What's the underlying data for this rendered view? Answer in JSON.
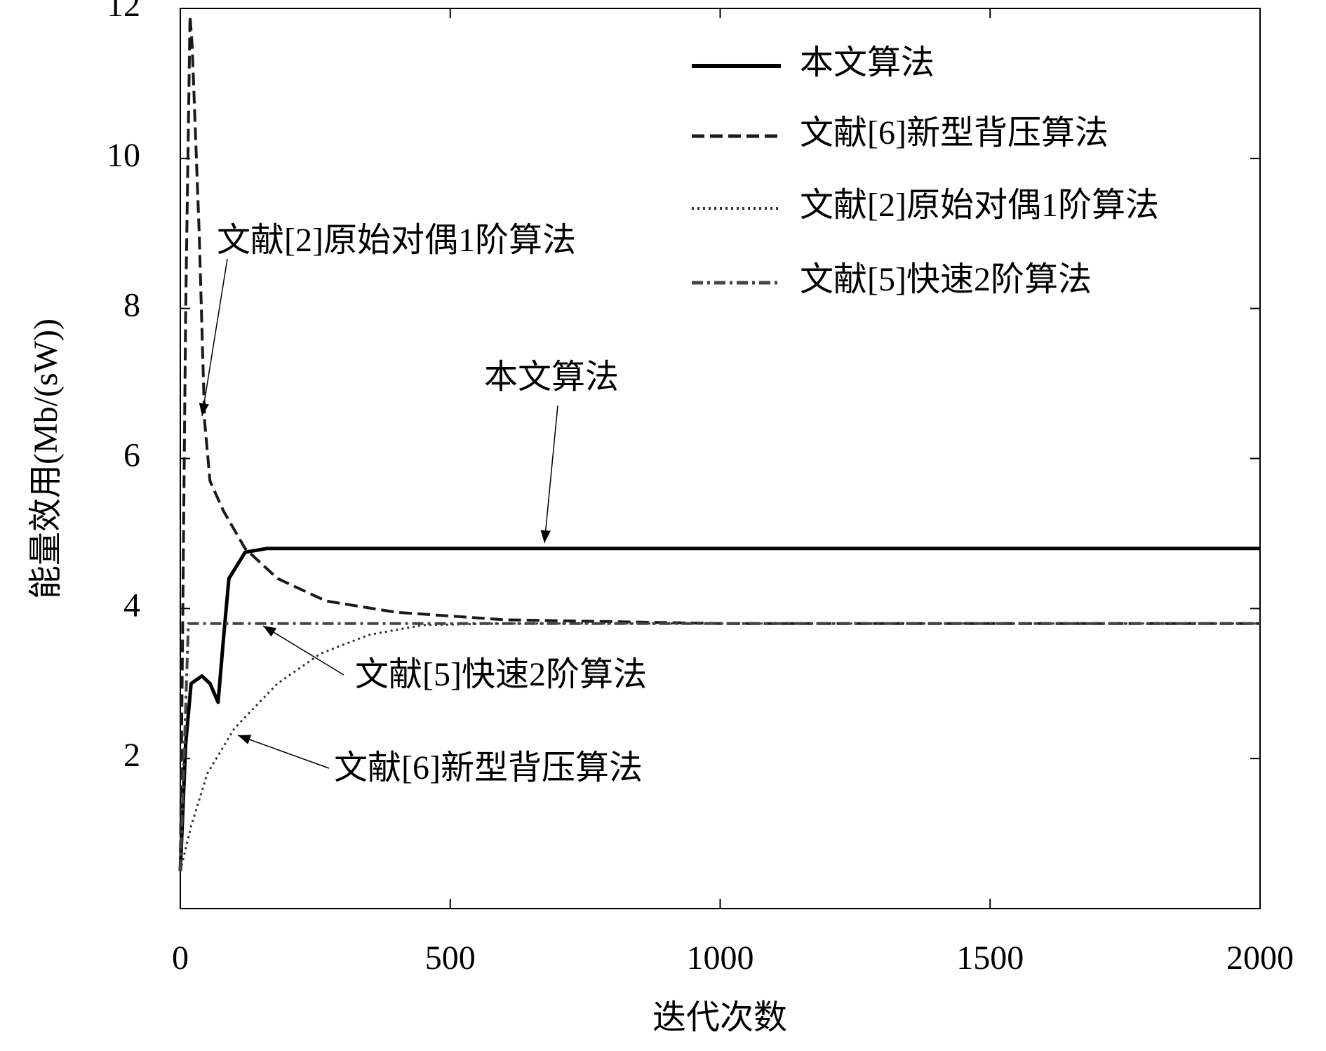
{
  "chart_data": {
    "type": "line",
    "xlabel": "迭代次数",
    "ylabel": "能量效用(Mb/(sW))",
    "xlim": [
      0,
      2000
    ],
    "xticks": [
      0,
      500,
      1000,
      1500,
      2000
    ],
    "ylim": [
      0,
      12
    ],
    "yticks": [
      2,
      4,
      6,
      8,
      10,
      12
    ],
    "legend": "upper right",
    "series": [
      {
        "name": "本文算法",
        "color": "#000000",
        "dash": "solid",
        "x": [
          0,
          10,
          20,
          40,
          55,
          70,
          80,
          90,
          120,
          160,
          300,
          1000,
          2000
        ],
        "values": [
          0.5,
          2.2,
          3.0,
          3.1,
          3.0,
          2.75,
          3.6,
          4.4,
          4.75,
          4.8,
          4.8,
          4.8,
          4.8
        ]
      },
      {
        "name": "文献[6]新型背压算法",
        "color": "#1a1a1a",
        "dash": "dashed",
        "x": [
          0,
          10,
          18,
          22,
          35,
          45,
          55,
          80,
          120,
          180,
          270,
          400,
          600,
          1000,
          2000
        ],
        "values": [
          0.5,
          8.0,
          11.9,
          11.5,
          9.0,
          6.5,
          5.7,
          5.3,
          4.8,
          4.4,
          4.1,
          3.95,
          3.85,
          3.8,
          3.8
        ]
      },
      {
        "name": "文献[2]原始对偶1阶算法",
        "color": "#333333",
        "dash": "dotted",
        "x": [
          0,
          20,
          50,
          100,
          180,
          260,
          350,
          450,
          600,
          1000,
          2000
        ],
        "values": [
          0.5,
          1.1,
          1.8,
          2.4,
          3.0,
          3.4,
          3.65,
          3.78,
          3.8,
          3.8,
          3.8
        ]
      },
      {
        "name": "文献[5]快速2阶算法",
        "color": "#444444",
        "dash": "dashdot",
        "x": [
          0,
          15,
          100,
          500,
          1000,
          2000
        ],
        "values": [
          0.5,
          3.8,
          3.8,
          3.8,
          3.8,
          3.8
        ]
      }
    ],
    "annotations": [
      "文献[2]原始对偶1阶算法",
      "本文算法",
      "文献[5]快速2阶算法",
      "文献[6]新型背压算法"
    ]
  }
}
